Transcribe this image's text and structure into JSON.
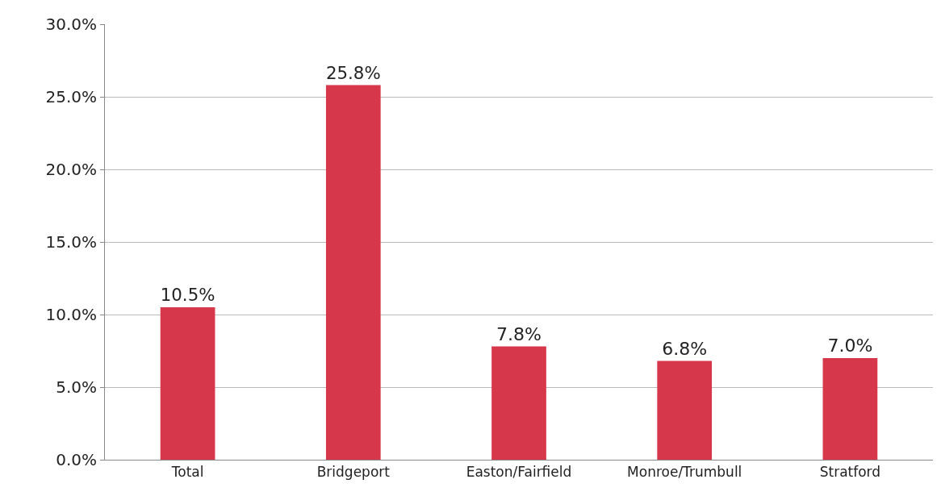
{
  "chart_data": {
    "type": "bar",
    "categories": [
      "Total",
      "Bridgeport",
      "Easton/Fairfield",
      "Monroe/Trumbull",
      "Stratford"
    ],
    "values": [
      10.5,
      25.8,
      7.8,
      6.8,
      7.0
    ],
    "value_labels": [
      "10.5%",
      "25.8%",
      "7.8%",
      "6.8%",
      "7.0%"
    ],
    "color": "#d7374a",
    "ylim": [
      0,
      30
    ],
    "yticks": [
      {
        "value": 0,
        "label": "0.0%"
      },
      {
        "value": 5,
        "label": "5.0%"
      },
      {
        "value": 10,
        "label": "10.0%"
      },
      {
        "value": 15,
        "label": "15.0%"
      },
      {
        "value": 20,
        "label": "20.0%"
      },
      {
        "value": 25,
        "label": "25.0%"
      },
      {
        "value": 30,
        "label": "30.0%"
      }
    ],
    "grid": "y"
  }
}
